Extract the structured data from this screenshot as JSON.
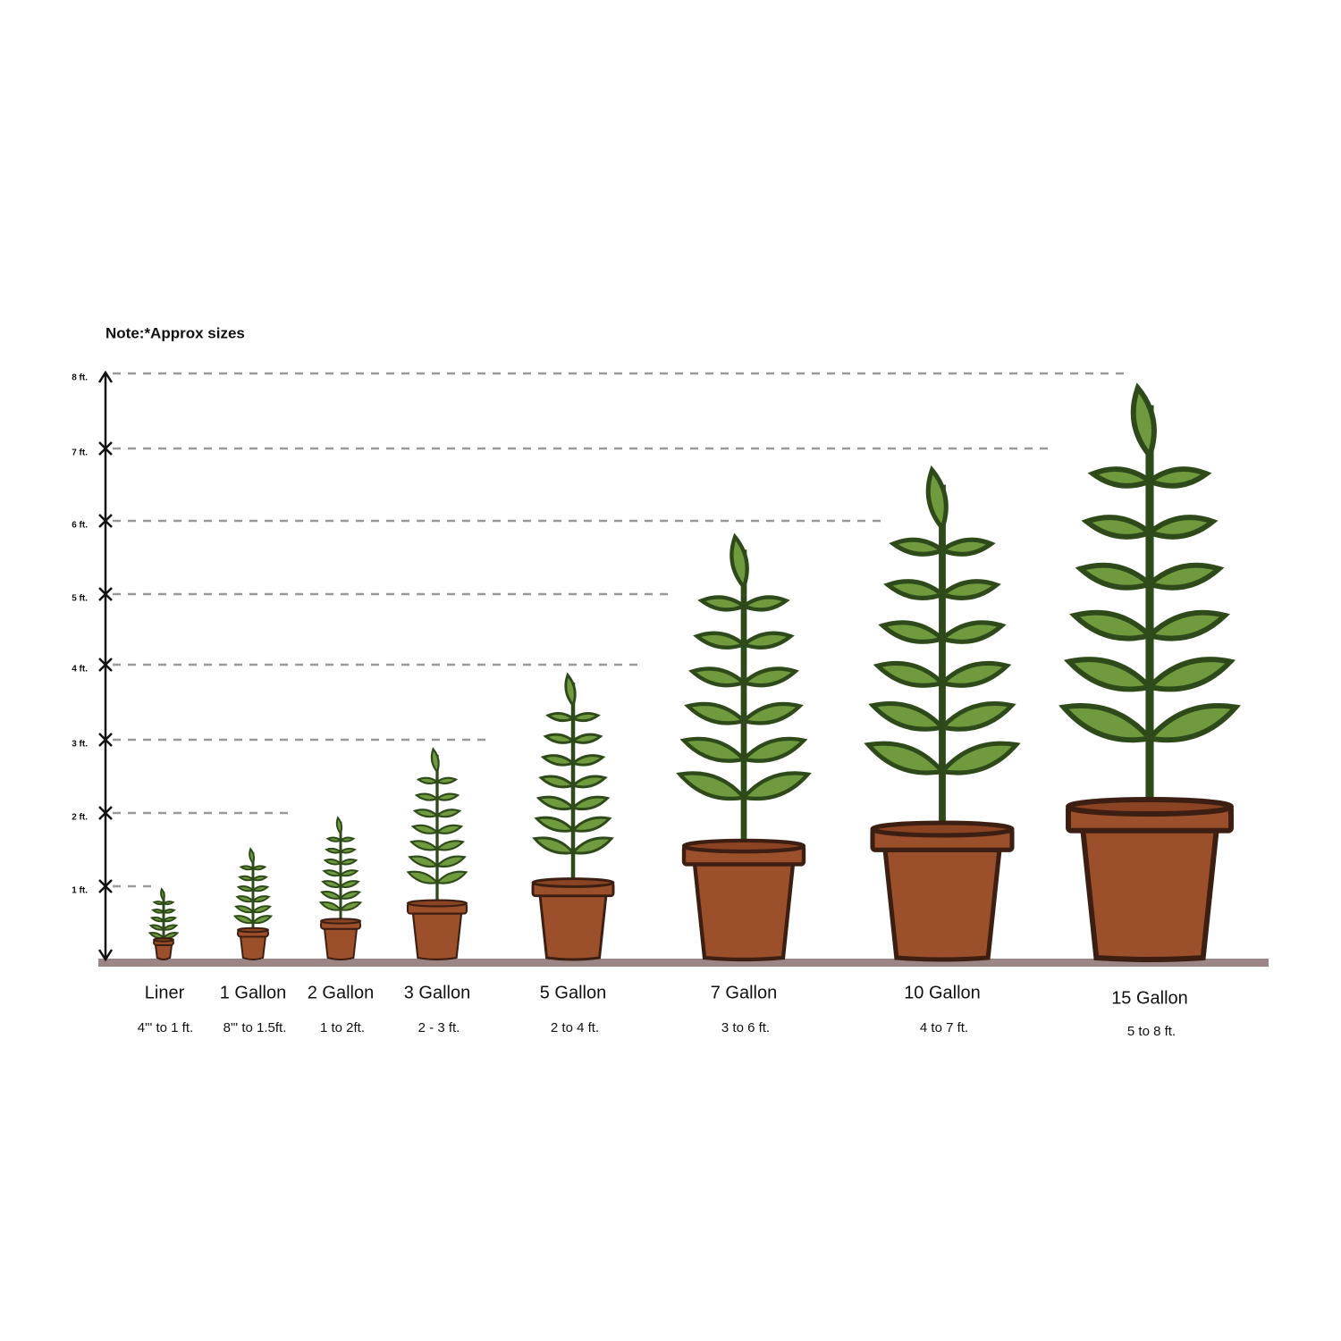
{
  "note": "Note:*Approx sizes",
  "axis_labels": [
    "8 ft.",
    "7 ft.",
    "6 ft.",
    "5 ft.",
    "4 ft.",
    "3 ft.",
    "2 ft.",
    "1 ft."
  ],
  "plants": [
    {
      "name": "Liner",
      "range": "4\"' to 1 ft."
    },
    {
      "name": "1 Gallon",
      "range": "8\"' to 1.5ft."
    },
    {
      "name": "2 Gallon",
      "range": "1 to 2ft."
    },
    {
      "name": "3 Gallon",
      "range": "2 - 3 ft."
    },
    {
      "name": "5 Gallon",
      "range": "2 to 4 ft."
    },
    {
      "name": "7 Gallon",
      "range": "3 to 6 ft."
    },
    {
      "name": "10 Gallon",
      "range": "4 to 7 ft."
    },
    {
      "name": "15 Gallon",
      "range": "5 to 8 ft."
    }
  ]
}
